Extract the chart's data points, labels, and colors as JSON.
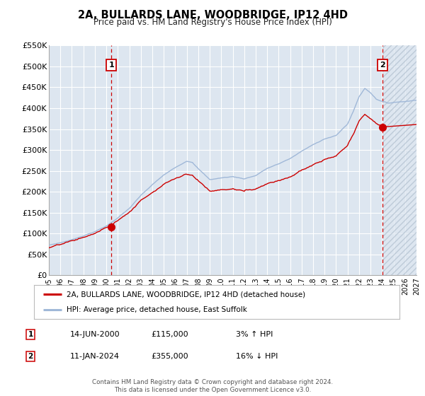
{
  "title": "2A, BULLARDS LANE, WOODBRIDGE, IP12 4HD",
  "subtitle": "Price paid vs. HM Land Registry's House Price Index (HPI)",
  "background_color": "#ffffff",
  "plot_bg_color": "#dde6f0",
  "grid_color": "#ffffff",
  "x_min": 1995.0,
  "x_max": 2027.0,
  "y_min": 0,
  "y_max": 550000,
  "y_ticks": [
    0,
    50000,
    100000,
    150000,
    200000,
    250000,
    300000,
    350000,
    400000,
    450000,
    500000,
    550000
  ],
  "y_tick_labels": [
    "£0",
    "£50K",
    "£100K",
    "£150K",
    "£200K",
    "£250K",
    "£300K",
    "£350K",
    "£400K",
    "£450K",
    "£500K",
    "£550K"
  ],
  "x_ticks": [
    1995,
    1996,
    1997,
    1998,
    1999,
    2000,
    2001,
    2002,
    2003,
    2004,
    2005,
    2006,
    2007,
    2008,
    2009,
    2010,
    2011,
    2012,
    2013,
    2014,
    2015,
    2016,
    2017,
    2018,
    2019,
    2020,
    2021,
    2022,
    2023,
    2024,
    2025,
    2026,
    2027
  ],
  "red_line_color": "#cc0000",
  "blue_line_color": "#a0b8d8",
  "sale1_x": 2000.45,
  "sale1_y": 115000,
  "sale1_label": "1",
  "sale2_x": 2024.03,
  "sale2_y": 355000,
  "sale2_label": "2",
  "marker_color": "#cc0000",
  "vline_color": "#cc0000",
  "legend_label_red": "2A, BULLARDS LANE, WOODBRIDGE, IP12 4HD (detached house)",
  "legend_label_blue": "HPI: Average price, detached house, East Suffolk",
  "annotation1_date": "14-JUN-2000",
  "annotation1_price": "£115,000",
  "annotation1_hpi": "3% ↑ HPI",
  "annotation2_date": "11-JAN-2024",
  "annotation2_price": "£355,000",
  "annotation2_hpi": "16% ↓ HPI",
  "footer": "Contains HM Land Registry data © Crown copyright and database right 2024.\nThis data is licensed under the Open Government Licence v3.0."
}
